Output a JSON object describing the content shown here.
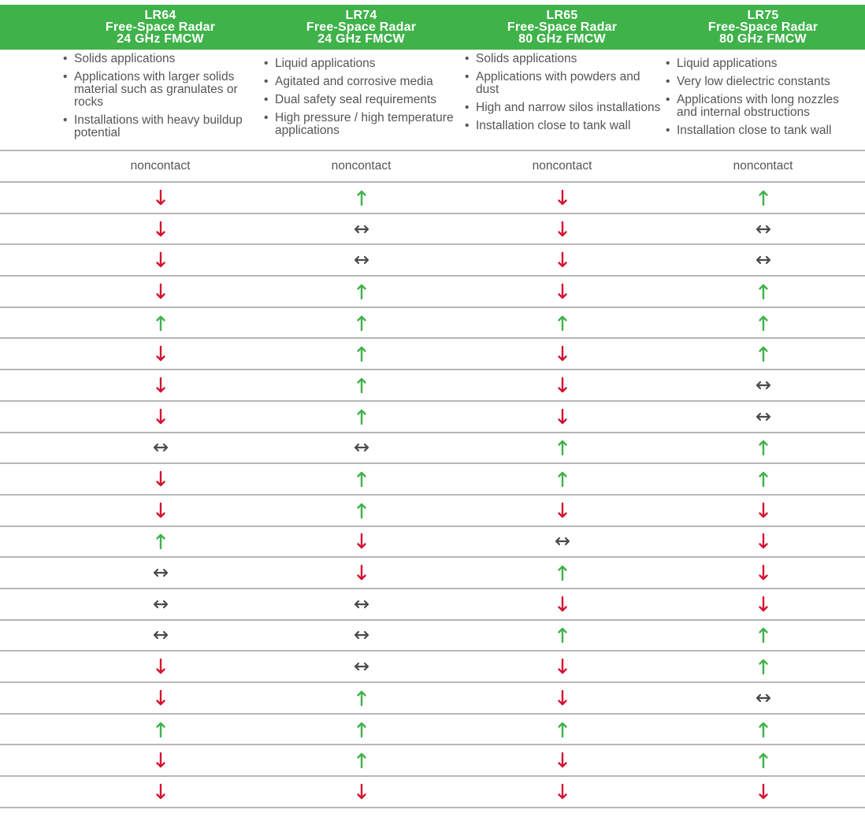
{
  "columns": [
    {
      "model": "LR64",
      "type": "Free-Space Radar",
      "freq": "24 GHz FMCW",
      "applications": [
        "Solids applications",
        "Applications with larger solids material such as granulates or rocks",
        "Installations with heavy buildup potential"
      ],
      "contact": "noncontact"
    },
    {
      "model": "LR74",
      "type": "Free-Space Radar",
      "freq": "24 GHz FMCW",
      "applications": [
        "Liquid applications",
        "Agitated and corrosive media",
        "Dual safety seal requirements",
        "High pressure / high temperature applications"
      ],
      "contact": "noncontact"
    },
    {
      "model": "LR65",
      "type": "Free-Space Radar",
      "freq": "80 GHz FMCW",
      "applications": [
        "Solids applications",
        "Applications with powders and dust",
        "High and narrow silos installations",
        "Installation close to tank wall"
      ],
      "contact": "noncontact"
    },
    {
      "model": "LR75",
      "type": "Free-Space Radar",
      "freq": "80 GHz FMCW",
      "applications": [
        "Liquid applications",
        "Very low dielectric constants",
        "Applications with long nozzles and internal obstructions",
        "Installation close to tank wall"
      ],
      "contact": "noncontact"
    }
  ],
  "ratings": [
    [
      "down",
      "up",
      "down",
      "up"
    ],
    [
      "down",
      "neutral",
      "down",
      "neutral"
    ],
    [
      "down",
      "neutral",
      "down",
      "neutral"
    ],
    [
      "down",
      "up",
      "down",
      "up"
    ],
    [
      "up",
      "up",
      "up",
      "up"
    ],
    [
      "down",
      "up",
      "down",
      "up"
    ],
    [
      "down",
      "up",
      "down",
      "neutral"
    ],
    [
      "down",
      "up",
      "down",
      "neutral"
    ],
    [
      "neutral",
      "neutral",
      "up",
      "up"
    ],
    [
      "down",
      "up",
      "up",
      "up"
    ],
    [
      "down",
      "up",
      "down",
      "down"
    ],
    [
      "up",
      "down",
      "neutral",
      "down"
    ],
    [
      "neutral",
      "down",
      "up",
      "down"
    ],
    [
      "neutral",
      "neutral",
      "down",
      "down"
    ],
    [
      "neutral",
      "neutral",
      "up",
      "up"
    ],
    [
      "down",
      "neutral",
      "down",
      "up"
    ],
    [
      "down",
      "up",
      "down",
      "neutral"
    ],
    [
      "up",
      "up",
      "up",
      "up"
    ],
    [
      "down",
      "up",
      "down",
      "up"
    ],
    [
      "down",
      "down",
      "down",
      "down"
    ]
  ],
  "colors": {
    "header_bg": "#3fb24a",
    "up": "#3fb24a",
    "down": "#d3132f",
    "neutral": "#4a4a4a",
    "rule": "#b7b7b7"
  },
  "icons": {
    "up": "arrow-up-icon",
    "down": "arrow-down-icon",
    "neutral": "arrow-left-right-icon"
  }
}
